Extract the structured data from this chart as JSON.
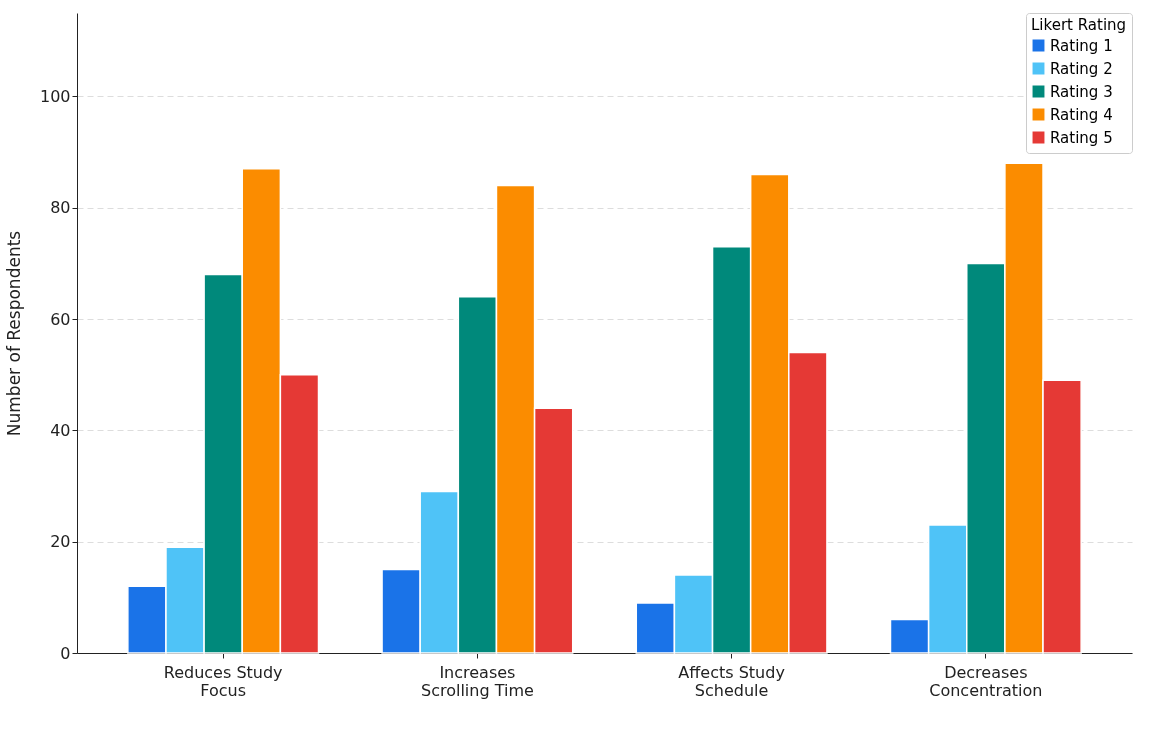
{
  "chart_data": {
    "type": "bar",
    "ylabel": "Number of Respondents",
    "legend_title": "Likert Rating",
    "categories": [
      "Reduces Study\nFocus",
      "Increases\nScrolling Time",
      "Affects Study\nSchedule",
      "Decreases\nConcentration"
    ],
    "series": [
      {
        "name": "Rating 1",
        "color": "#1a73e8",
        "values": [
          12,
          15,
          9,
          6
        ]
      },
      {
        "name": "Rating 2",
        "color": "#4fc3f7",
        "values": [
          19,
          29,
          14,
          23
        ]
      },
      {
        "name": "Rating 3",
        "color": "#00897b",
        "values": [
          68,
          64,
          73,
          70
        ]
      },
      {
        "name": "Rating 4",
        "color": "#fb8c00",
        "values": [
          87,
          84,
          86,
          88
        ]
      },
      {
        "name": "Rating 5",
        "color": "#e53935",
        "values": [
          50,
          44,
          54,
          49
        ]
      }
    ],
    "ylim": [
      0,
      115
    ],
    "yticks": [
      0,
      20,
      40,
      60,
      80,
      100
    ],
    "grid": "y",
    "legend": "top right"
  }
}
